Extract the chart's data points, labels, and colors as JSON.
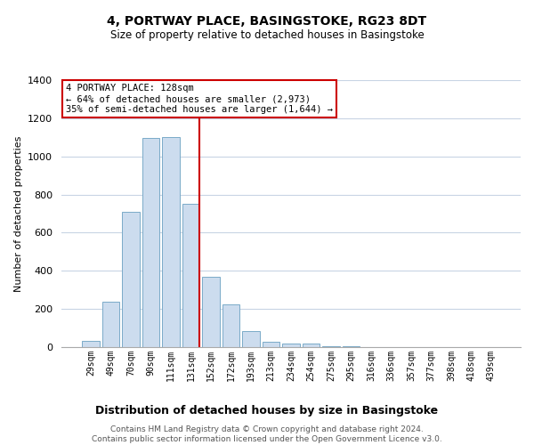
{
  "title": "4, PORTWAY PLACE, BASINGSTOKE, RG23 8DT",
  "subtitle": "Size of property relative to detached houses in Basingstoke",
  "xlabel": "Distribution of detached houses by size in Basingstoke",
  "ylabel": "Number of detached properties",
  "bar_labels": [
    "29sqm",
    "49sqm",
    "70sqm",
    "90sqm",
    "111sqm",
    "131sqm",
    "152sqm",
    "172sqm",
    "193sqm",
    "213sqm",
    "234sqm",
    "254sqm",
    "275sqm",
    "295sqm",
    "316sqm",
    "336sqm",
    "357sqm",
    "377sqm",
    "398sqm",
    "418sqm",
    "439sqm"
  ],
  "bar_heights": [
    35,
    240,
    710,
    1095,
    1100,
    750,
    370,
    225,
    85,
    30,
    18,
    20,
    5,
    5,
    2,
    2,
    1,
    1,
    0,
    0,
    0
  ],
  "bar_color": "#ccdcee",
  "bar_edge_color": "#7aaac8",
  "vline_color": "#cc0000",
  "annotation_line1": "4 PORTWAY PLACE: 128sqm",
  "annotation_line2": "← 64% of detached houses are smaller (2,973)",
  "annotation_line3": "35% of semi-detached houses are larger (1,644) →",
  "annotation_box_color": "#ffffff",
  "annotation_box_edge": "#cc0000",
  "ylim": [
    0,
    1400
  ],
  "yticks": [
    0,
    200,
    400,
    600,
    800,
    1000,
    1200,
    1400
  ],
  "footer_line1": "Contains HM Land Registry data © Crown copyright and database right 2024.",
  "footer_line2": "Contains public sector information licensed under the Open Government Licence v3.0.",
  "background_color": "#ffffff",
  "grid_color": "#c8d4e4"
}
